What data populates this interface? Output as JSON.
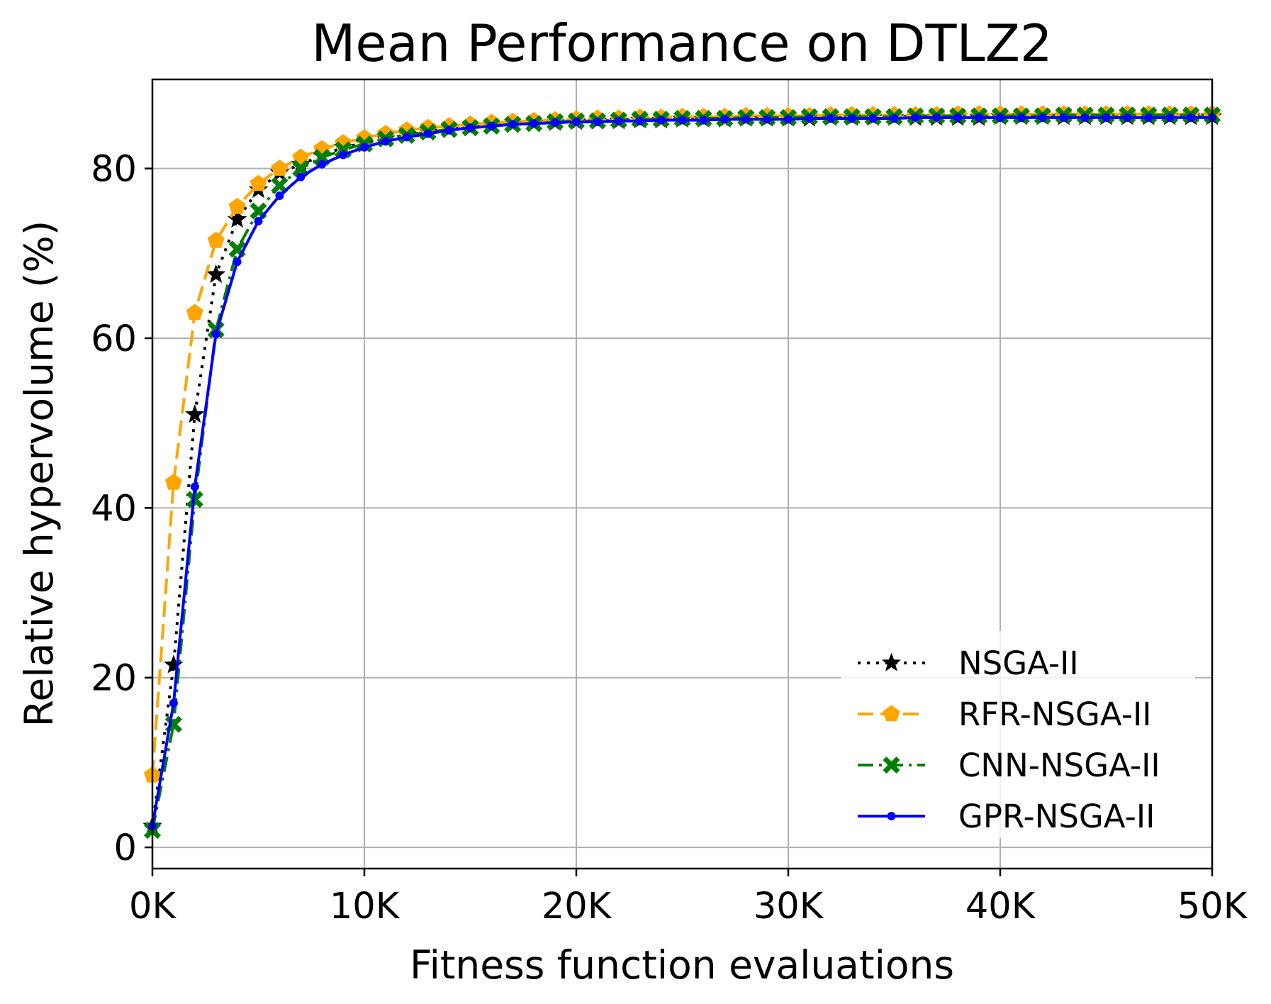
{
  "chart_data": {
    "type": "line",
    "title": "Mean Performance on DTLZ2",
    "xlabel": "Fitness function evaluations",
    "ylabel": "Relative hypervolume (%)",
    "xlim": [
      0,
      50000
    ],
    "ylim": [
      -2.5,
      90.5
    ],
    "grid": true,
    "legend_position": "lower-right",
    "x_ticks": [
      {
        "value": 0,
        "label": "0K"
      },
      {
        "value": 10000,
        "label": "10K"
      },
      {
        "value": 20000,
        "label": "20K"
      },
      {
        "value": 30000,
        "label": "30K"
      },
      {
        "value": 40000,
        "label": "40K"
      },
      {
        "value": 50000,
        "label": "50K"
      }
    ],
    "y_ticks": [
      {
        "value": 0,
        "label": "0"
      },
      {
        "value": 20,
        "label": "20"
      },
      {
        "value": 40,
        "label": "40"
      },
      {
        "value": 60,
        "label": "60"
      },
      {
        "value": 80,
        "label": "80"
      }
    ],
    "x": [
      0,
      1000,
      2000,
      3000,
      4000,
      5000,
      6000,
      7000,
      8000,
      9000,
      10000,
      11000,
      12000,
      13000,
      14000,
      15000,
      16000,
      17000,
      18000,
      19000,
      20000,
      21000,
      22000,
      23000,
      24000,
      25000,
      26000,
      27000,
      28000,
      29000,
      30000,
      31000,
      32000,
      33000,
      34000,
      35000,
      36000,
      37000,
      38000,
      39000,
      40000,
      41000,
      42000,
      43000,
      44000,
      45000,
      46000,
      47000,
      48000,
      49000,
      50000
    ],
    "series": [
      {
        "name": "NSGA-II",
        "color": "#000000",
        "line_style": "dotted",
        "marker": "star",
        "values": [
          2.5,
          21.5,
          51.0,
          67.5,
          74.0,
          77.5,
          79.5,
          80.5,
          81.5,
          82.5,
          83.0,
          83.5,
          84.0,
          84.3,
          84.6,
          84.8,
          85.0,
          85.2,
          85.3,
          85.4,
          85.5,
          85.6,
          85.6,
          85.7,
          85.7,
          85.8,
          85.8,
          85.8,
          85.9,
          85.9,
          85.9,
          85.9,
          86.0,
          86.0,
          86.0,
          86.0,
          86.0,
          86.0,
          86.0,
          86.0,
          86.1,
          86.1,
          86.1,
          86.1,
          86.1,
          86.1,
          86.1,
          86.1,
          86.1,
          86.1,
          86.1
        ]
      },
      {
        "name": "RFR-NSGA-II",
        "color": "#ffa500",
        "line_style": "dashed",
        "marker": "pentagon",
        "values": [
          8.5,
          43.0,
          63.0,
          71.5,
          75.5,
          78.2,
          80.0,
          81.3,
          82.3,
          83.0,
          83.6,
          84.1,
          84.5,
          84.8,
          85.0,
          85.2,
          85.4,
          85.5,
          85.6,
          85.7,
          85.8,
          85.9,
          85.9,
          86.0,
          86.0,
          86.1,
          86.1,
          86.1,
          86.2,
          86.2,
          86.2,
          86.2,
          86.3,
          86.3,
          86.3,
          86.3,
          86.3,
          86.3,
          86.4,
          86.4,
          86.4,
          86.4,
          86.4,
          86.4,
          86.4,
          86.4,
          86.4,
          86.4,
          86.4,
          86.4,
          86.4
        ]
      },
      {
        "name": "CNN-NSGA-II",
        "color": "#008000",
        "line_style": "dashdot",
        "marker": "x-filled",
        "values": [
          2.0,
          14.5,
          41.0,
          61.0,
          70.5,
          75.0,
          78.0,
          80.0,
          81.3,
          82.2,
          82.9,
          83.5,
          83.9,
          84.3,
          84.6,
          84.8,
          85.0,
          85.2,
          85.3,
          85.5,
          85.6,
          85.6,
          85.7,
          85.8,
          85.8,
          85.9,
          85.9,
          85.9,
          86.0,
          86.0,
          86.0,
          86.1,
          86.1,
          86.1,
          86.1,
          86.1,
          86.2,
          86.2,
          86.2,
          86.2,
          86.2,
          86.2,
          86.2,
          86.3,
          86.3,
          86.3,
          86.3,
          86.3,
          86.3,
          86.3,
          86.3
        ]
      },
      {
        "name": "GPR-NSGA-II",
        "color": "#0000ff",
        "line_style": "solid",
        "marker": "point",
        "values": [
          2.5,
          17.0,
          42.5,
          60.5,
          69.0,
          73.8,
          76.8,
          79.0,
          80.5,
          81.6,
          82.5,
          83.2,
          83.7,
          84.1,
          84.5,
          84.8,
          85.0,
          85.2,
          85.3,
          85.4,
          85.5,
          85.5,
          85.6,
          85.6,
          85.7,
          85.7,
          85.7,
          85.8,
          85.8,
          85.8,
          85.8,
          85.9,
          85.9,
          85.9,
          85.9,
          85.9,
          86.0,
          86.0,
          86.0,
          86.0,
          86.0,
          86.0,
          86.0,
          86.0,
          86.0,
          86.0,
          86.0,
          86.0,
          86.0,
          86.0,
          86.0
        ]
      }
    ]
  }
}
